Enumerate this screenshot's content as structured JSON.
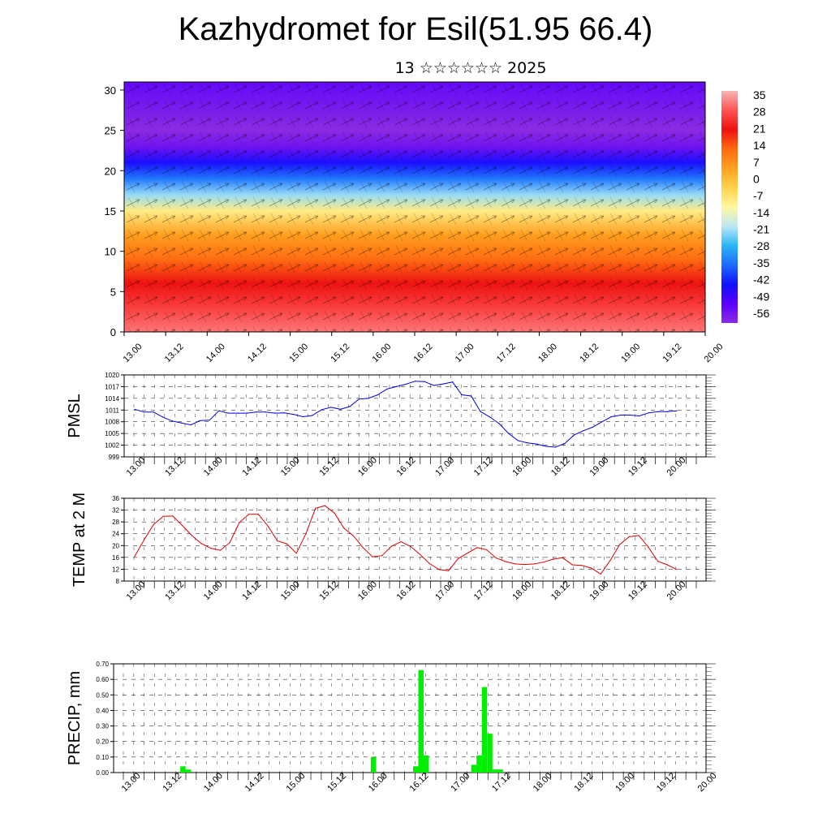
{
  "title": "Kazhydromet for Esil(51.95 66.4)",
  "subtitle": "13 ☆☆☆☆☆☆ 2025",
  "colors": {
    "pmsl_line": "#0000dd",
    "temp_line": "#dd0000",
    "precip_bar": "#00ee00",
    "colorbar": [
      "#8a2be2",
      "#5a00ff",
      "#1010ff",
      "#1e6bff",
      "#29b6f6",
      "#bde7f7",
      "#fff8a0",
      "#ffd24a",
      "#ffa020",
      "#ff6a10",
      "#ee1010",
      "#ff5555",
      "#f5b5b5"
    ]
  },
  "x_tick_labels": [
    "13.00",
    "13.12",
    "14.00",
    "14.12",
    "15.00",
    "15.12",
    "16.00",
    "16.12",
    "17.00",
    "17.12",
    "18.00",
    "18.12",
    "19.00",
    "19.12",
    "20.00"
  ],
  "chart_data": [
    {
      "id": "cross-section",
      "type": "heatmap",
      "title": "",
      "xlabel": "",
      "ylabel": "",
      "ylim": [
        0,
        31
      ],
      "y_ticks": [
        0,
        5,
        10,
        15,
        20,
        25,
        30
      ],
      "colorbar_labels": [
        "35",
        "28",
        "21",
        "14",
        "7",
        "0",
        "-7",
        "-14",
        "-21",
        "-28",
        "-35",
        "-42",
        "-49",
        "-56"
      ],
      "colorbar_values": [
        35,
        28,
        21,
        14,
        7,
        0,
        -7,
        -14,
        -21,
        -28,
        -35,
        -42,
        -49,
        -56
      ],
      "temperature_profile": {
        "levels": [
          0,
          3,
          6,
          9,
          12,
          15,
          17,
          19,
          21,
          23,
          25,
          27,
          31
        ],
        "values": [
          30,
          25,
          20,
          12,
          5,
          -8,
          -20,
          -32,
          -42,
          -52,
          -58,
          -54,
          -50
        ]
      },
      "overlay": "wind vectors"
    },
    {
      "id": "pmsl",
      "type": "line",
      "ylabel": "PMSL",
      "ylim": [
        999,
        1020
      ],
      "y_ticks": [
        999,
        1002,
        1005,
        1008,
        1011,
        1014,
        1017,
        1020
      ],
      "series": [
        {
          "values": [
            1011.2,
            1010.5,
            1010.5,
            1009.2,
            1008.2,
            1007.7,
            1007.2,
            1008.3,
            1008.4,
            1010.8,
            1010.2,
            1010.2,
            1010.2,
            1010.5,
            1010.5,
            1010.2,
            1010.3,
            1009.9,
            1009.3,
            1009.6,
            1011.1,
            1011.7,
            1011.2,
            1011.9,
            1013.8,
            1014.0,
            1014.9,
            1016.4,
            1017.0,
            1017.6,
            1018.4,
            1018.3,
            1017.3,
            1017.7,
            1018.2,
            1014.9,
            1014.6,
            1010.6,
            1009.2,
            1007.5,
            1005.0,
            1003.2,
            1002.6,
            1002.3,
            1001.7,
            1001.5,
            1002.4,
            1004.6,
            1005.7,
            1006.6,
            1008.0,
            1009.3,
            1009.7,
            1009.7,
            1009.5,
            1010.3,
            1010.6,
            1010.6,
            1010.8
          ]
        }
      ]
    },
    {
      "id": "temp",
      "type": "line",
      "ylabel": "TEMP at 2 M",
      "ylim": [
        8,
        36
      ],
      "y_ticks": [
        8,
        12,
        16,
        20,
        24,
        28,
        32,
        36
      ],
      "series": [
        {
          "values": [
            16.4,
            22.0,
            27.2,
            29.9,
            30.0,
            26.8,
            23.4,
            20.7,
            19.1,
            18.4,
            21.0,
            27.8,
            30.6,
            30.6,
            26.6,
            21.6,
            20.6,
            17.4,
            24.0,
            32.6,
            33.5,
            31.0,
            25.9,
            23.3,
            19.3,
            16.2,
            16.6,
            19.8,
            21.3,
            19.7,
            17.0,
            13.9,
            11.9,
            11.5,
            15.6,
            17.5,
            19.3,
            18.6,
            15.8,
            14.6,
            13.8,
            13.6,
            13.8,
            14.4,
            15.4,
            15.9,
            13.5,
            13.3,
            12.4,
            10.4,
            15.0,
            20.4,
            23.0,
            23.4,
            19.5,
            14.7,
            13.5,
            11.9
          ]
        }
      ]
    },
    {
      "id": "precip",
      "type": "bar",
      "ylabel": "PRECIP, mm",
      "ylim": [
        0,
        0.7
      ],
      "y_ticks": [
        "0.00",
        "0.10",
        "0.20",
        "0.30",
        "0.40",
        "0.50",
        "0.60",
        "0.70"
      ],
      "values": [
        0,
        0,
        0,
        0,
        0,
        0,
        0,
        0,
        0,
        0,
        0,
        0,
        0.04,
        0.02,
        0,
        0,
        0,
        0,
        0,
        0,
        0,
        0,
        0,
        0,
        0,
        0,
        0,
        0,
        0,
        0,
        0,
        0,
        0,
        0,
        0,
        0,
        0,
        0,
        0,
        0,
        0,
        0,
        0,
        0,
        0,
        0,
        0,
        0,
        0.1,
        0,
        0,
        0,
        0,
        0,
        0,
        0,
        0.04,
        0.66,
        0.11,
        0,
        0,
        0,
        0,
        0,
        0,
        0,
        0,
        0.05,
        0.11,
        0.55,
        0.25,
        0.02,
        0.02,
        0,
        0,
        0,
        0,
        0,
        0,
        0,
        0,
        0,
        0,
        0,
        0,
        0,
        0,
        0,
        0,
        0,
        0,
        0,
        0,
        0,
        0,
        0,
        0,
        0,
        0,
        0,
        0,
        0,
        0,
        0,
        0,
        0,
        0,
        0,
        0,
        0,
        0,
        0
      ]
    }
  ]
}
